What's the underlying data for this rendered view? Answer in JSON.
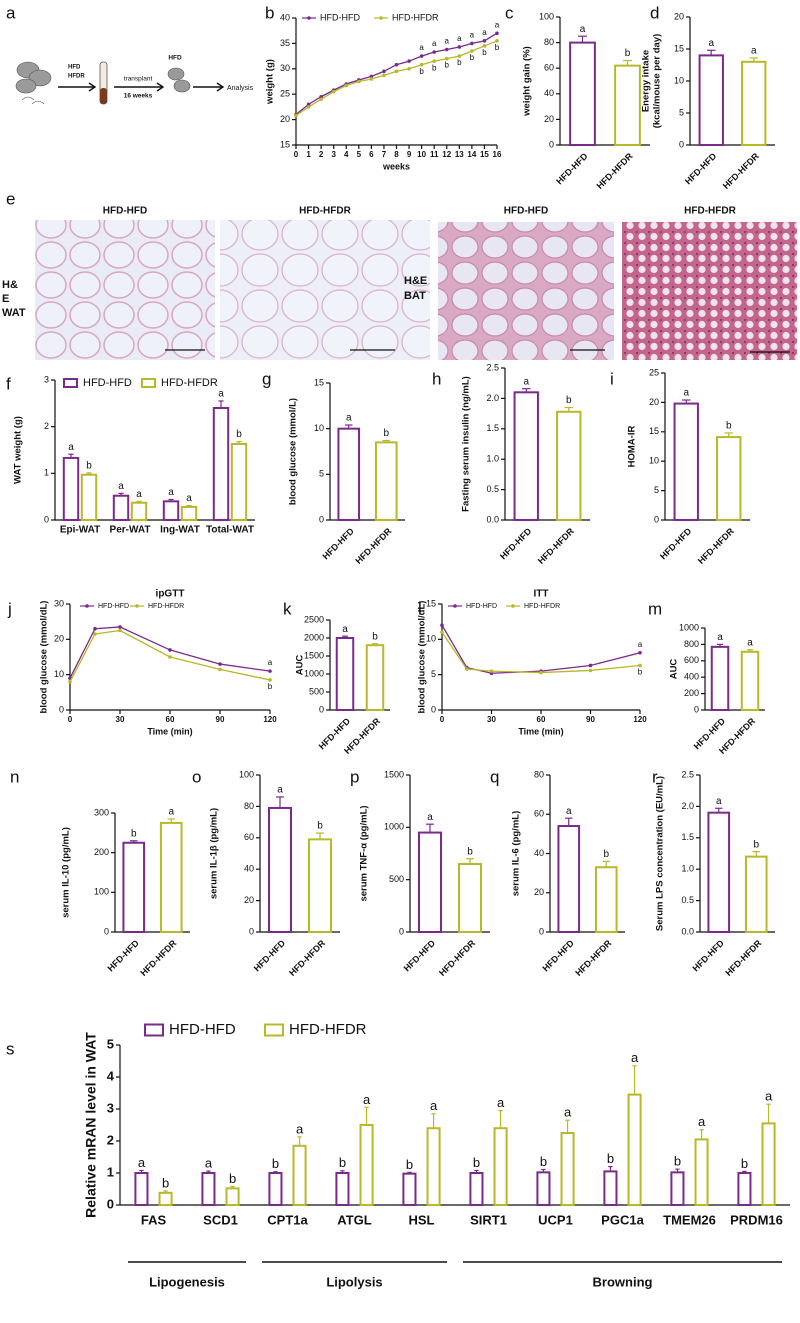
{
  "schematic": {
    "panel": "a",
    "labels": [
      "HFD",
      "HFDR",
      "transplant",
      "16 weeks",
      "HFD",
      "Analysis"
    ]
  },
  "histology": {
    "panel": "e",
    "images": [
      "HFD-HFD",
      "HFD-HFDR",
      "HFD-HFD",
      "HFD-HFDR"
    ],
    "row_labels": [
      [
        "H&",
        "E",
        "WAT"
      ],
      [
        "H&E",
        "BAT"
      ]
    ]
  },
  "chart_data": [
    {
      "panel": "b",
      "type": "line",
      "ylabel": "weight (g)",
      "xlabel": "weeks",
      "x": [
        0,
        1,
        2,
        3,
        4,
        5,
        6,
        7,
        8,
        9,
        10,
        11,
        12,
        13,
        14,
        15,
        16
      ],
      "xlim": [
        0,
        16
      ],
      "xticks": [
        0,
        1,
        2,
        3,
        4,
        5,
        6,
        7,
        8,
        9,
        10,
        11,
        12,
        13,
        14,
        15,
        16
      ],
      "ylim": [
        15,
        40
      ],
      "yticks": [
        15,
        20,
        25,
        30,
        35,
        40
      ],
      "series": [
        {
          "name": "HFD-HFD",
          "color": "#7b2a8c",
          "values": [
            21,
            23,
            24.5,
            25.8,
            27,
            27.8,
            28.5,
            29.5,
            30.8,
            31.5,
            32.5,
            33.3,
            33.8,
            34.3,
            35,
            35.5,
            37
          ],
          "letters": [
            null,
            null,
            null,
            null,
            null,
            null,
            null,
            null,
            null,
            null,
            "a",
            "a",
            "a",
            "a",
            "a",
            "a",
            "a"
          ]
        },
        {
          "name": "HFD-HFDR",
          "color": "#b8b828",
          "values": [
            20.8,
            22.5,
            24,
            25.5,
            26.7,
            27.5,
            28,
            28.7,
            29.5,
            30,
            30.8,
            31.5,
            32,
            32.5,
            33.5,
            34.5,
            35.5
          ],
          "letters": [
            null,
            null,
            null,
            null,
            null,
            null,
            null,
            null,
            null,
            null,
            "b",
            "b",
            "b",
            "b",
            "b",
            "b",
            "b"
          ]
        }
      ]
    },
    {
      "panel": "c",
      "type": "bar",
      "ylabel": "weight gain (%)",
      "categories": [
        "HFD-HFD",
        "HFD-HFDR"
      ],
      "colors": [
        "#7b2a8c",
        "#b8b828"
      ],
      "values": [
        80,
        62
      ],
      "errors": [
        5,
        4
      ],
      "letters": [
        "a",
        "b"
      ],
      "ylim": [
        0,
        100
      ],
      "yticks": [
        0,
        20,
        40,
        60,
        80,
        100
      ]
    },
    {
      "panel": "d",
      "type": "bar",
      "ylabel": [
        "Energy intake",
        "(kcal/mouse per day)"
      ],
      "categories": [
        "HFD-HFD",
        "HFD-HFDR"
      ],
      "colors": [
        "#7b2a8c",
        "#b8b828"
      ],
      "values": [
        14,
        13
      ],
      "errors": [
        0.8,
        0.6
      ],
      "letters": [
        "a",
        "a"
      ],
      "ylim": [
        0,
        20
      ],
      "yticks": [
        0,
        5,
        10,
        15,
        20
      ]
    },
    {
      "panel": "f",
      "type": "bar",
      "ylabel": "WAT weight (g)",
      "categories": [
        "Epi-WAT",
        "Per-WAT",
        "Ing-WAT",
        "Total-WAT"
      ],
      "ylim": [
        0,
        3
      ],
      "yticks": [
        0,
        1,
        2,
        3
      ],
      "series": [
        {
          "name": "HFD-HFD",
          "color": "#7b2a8c",
          "values": [
            1.33,
            0.52,
            0.4,
            2.4
          ],
          "errors": [
            0.08,
            0.05,
            0.04,
            0.15
          ],
          "letters": [
            "a",
            "a",
            "a",
            "a"
          ]
        },
        {
          "name": "HFD-HFDR",
          "color": "#b8b828",
          "values": [
            0.97,
            0.37,
            0.28,
            1.63
          ],
          "errors": [
            0.04,
            0.03,
            0.03,
            0.05
          ],
          "letters": [
            "b",
            "a",
            "a",
            "b"
          ]
        }
      ]
    },
    {
      "panel": "g",
      "type": "bar",
      "ylabel": "blood glucose (mmol/L)",
      "categories": [
        "HFD-HFD",
        "HFD-HFDR"
      ],
      "colors": [
        "#7b2a8c",
        "#b8b828"
      ],
      "values": [
        10,
        8.5
      ],
      "errors": [
        0.4,
        0.2
      ],
      "letters": [
        "a",
        "b"
      ],
      "ylim": [
        0,
        15
      ],
      "yticks": [
        0,
        5,
        10,
        15
      ]
    },
    {
      "panel": "h",
      "type": "bar",
      "ylabel": "Fasting serum insulin (ng/mL)",
      "categories": [
        "HFD-HFD",
        "HFD-HFDR"
      ],
      "colors": [
        "#7b2a8c",
        "#b8b828"
      ],
      "values": [
        2.1,
        1.78
      ],
      "errors": [
        0.06,
        0.07
      ],
      "letters": [
        "a",
        "b"
      ],
      "ylim": [
        0,
        2.5
      ],
      "yticks": [
        {
          "value": 0,
          "label": "0.0"
        },
        0.5,
        {
          "value": 1,
          "label": "1.0"
        },
        1.5,
        {
          "value": 2,
          "label": "2.0"
        },
        2.5
      ]
    },
    {
      "panel": "i",
      "type": "bar",
      "ylabel": "HOMA-IR",
      "categories": [
        "HFD-HFD",
        "HFD-HFDR"
      ],
      "colors": [
        "#7b2a8c",
        "#b8b828"
      ],
      "values": [
        19.8,
        14.1
      ],
      "errors": [
        0.6,
        0.7
      ],
      "letters": [
        "a",
        "b"
      ],
      "ylim": [
        0,
        25
      ],
      "yticks": [
        0,
        5,
        10,
        15,
        20,
        25
      ]
    },
    {
      "panel": "j",
      "type": "line",
      "title": "ipGTT",
      "ylabel": "blood glucose (mmol/dL)",
      "xlabel": "Time (min)",
      "x": [
        0,
        15,
        30,
        60,
        90,
        120
      ],
      "xlim": [
        0,
        120
      ],
      "xticks": [
        0,
        30,
        60,
        90,
        120
      ],
      "ylim": [
        0,
        30
      ],
      "yticks": [
        0,
        10,
        20,
        30
      ],
      "series": [
        {
          "name": "HFD-HFD",
          "color": "#7b2a8c",
          "values": [
            9,
            23,
            23.5,
            17,
            13,
            11
          ],
          "letters": [
            null,
            null,
            null,
            null,
            null,
            "a"
          ]
        },
        {
          "name": "HFD-HFDR",
          "color": "#b8b828",
          "values": [
            8,
            21.5,
            22.5,
            15,
            11.5,
            8.5
          ],
          "letters": [
            null,
            null,
            null,
            null,
            null,
            "b"
          ]
        }
      ]
    },
    {
      "panel": "k",
      "type": "bar",
      "ylabel": "AUC",
      "categories": [
        "HFD-HFD",
        "HFD-HFDR"
      ],
      "colors": [
        "#7b2a8c",
        "#b8b828"
      ],
      "values": [
        2000,
        1800
      ],
      "errors": [
        50,
        40
      ],
      "letters": [
        "a",
        "b"
      ],
      "ylim": [
        0,
        2500
      ],
      "yticks": [
        0,
        500,
        1000,
        1500,
        2000,
        2500
      ]
    },
    {
      "panel": "l",
      "type": "line",
      "title": "ITT",
      "ylabel": "blood glucose (mmol/dL)",
      "xlabel": "Time (min)",
      "x": [
        0,
        15,
        30,
        60,
        90,
        120
      ],
      "xlim": [
        0,
        120
      ],
      "xticks": [
        0,
        30,
        60,
        90,
        120
      ],
      "ylim": [
        0,
        15
      ],
      "yticks": [
        0,
        5,
        10,
        15
      ],
      "series": [
        {
          "name": "HFD-HFD",
          "color": "#7b2a8c",
          "values": [
            12,
            6,
            5.2,
            5.5,
            6.3,
            8.1
          ],
          "letters": [
            null,
            null,
            null,
            null,
            null,
            "a"
          ]
        },
        {
          "name": "HFD-HFDR",
          "color": "#b8b828",
          "values": [
            11,
            5.8,
            5.5,
            5.3,
            5.6,
            6.3
          ],
          "letters": [
            null,
            null,
            null,
            null,
            null,
            "b"
          ]
        }
      ]
    },
    {
      "panel": "m",
      "type": "bar",
      "ylabel": "AUC",
      "categories": [
        "HFD-HFD",
        "HFD-HFDR"
      ],
      "colors": [
        "#7b2a8c",
        "#b8b828"
      ],
      "values": [
        770,
        710
      ],
      "errors": [
        30,
        25
      ],
      "letters": [
        "a",
        "a"
      ],
      "ylim": [
        0,
        1000
      ],
      "yticks": [
        0,
        200,
        400,
        600,
        800,
        1000
      ]
    },
    {
      "panel": "n",
      "type": "bar",
      "ylabel": "serum IL-10 (pg/mL)",
      "categories": [
        "HFD-HFD",
        "HFD-HFDR"
      ],
      "colors": [
        "#7b2a8c",
        "#b8b828"
      ],
      "values": [
        225,
        275
      ],
      "errors": [
        5,
        10
      ],
      "letters": [
        "b",
        "a"
      ],
      "ylim": [
        0,
        300
      ],
      "yticks": [
        0,
        100,
        200,
        300
      ]
    },
    {
      "panel": "o",
      "type": "bar",
      "ylabel": "serum IL-1β (pg/mL)",
      "categories": [
        "HFD-HFD",
        "HFD-HFDR"
      ],
      "colors": [
        "#7b2a8c",
        "#b8b828"
      ],
      "values": [
        79,
        59
      ],
      "errors": [
        7,
        4
      ],
      "letters": [
        "a",
        "b"
      ],
      "ylim": [
        0,
        100
      ],
      "yticks": [
        0,
        20,
        40,
        60,
        80,
        100
      ]
    },
    {
      "panel": "p",
      "type": "bar",
      "ylabel": "serum TNF-α (pg/mL)",
      "categories": [
        "HFD-HFD",
        "HFD-HFDR"
      ],
      "colors": [
        "#7b2a8c",
        "#b8b828"
      ],
      "values": [
        950,
        650
      ],
      "errors": [
        80,
        50
      ],
      "letters": [
        "a",
        "b"
      ],
      "ylim": [
        0,
        1500
      ],
      "yticks": [
        0,
        500,
        1000,
        1500
      ]
    },
    {
      "panel": "q",
      "type": "bar",
      "ylabel": "serum IL-6 (pg/mL)",
      "categories": [
        "HFD-HFD",
        "HFD-HFDR"
      ],
      "colors": [
        "#7b2a8c",
        "#b8b828"
      ],
      "values": [
        54,
        33
      ],
      "errors": [
        4,
        3
      ],
      "letters": [
        "a",
        "b"
      ],
      "ylim": [
        0,
        80
      ],
      "yticks": [
        0,
        20,
        40,
        60,
        80
      ]
    },
    {
      "panel": "r",
      "type": "bar",
      "ylabel": "Serum LPS concentration (EU/mL)",
      "categories": [
        "HFD-HFD",
        "HFD-HFDR"
      ],
      "colors": [
        "#7b2a8c",
        "#b8b828"
      ],
      "values": [
        1.9,
        1.2
      ],
      "errors": [
        0.07,
        0.08
      ],
      "letters": [
        "a",
        "b"
      ],
      "ylim": [
        0,
        2.5
      ],
      "yticks": [
        {
          "value": 0,
          "label": "0.0"
        },
        0.5,
        {
          "value": 1,
          "label": "1.0"
        },
        1.5,
        {
          "value": 2,
          "label": "2.0"
        },
        2.5
      ]
    },
    {
      "panel": "s",
      "type": "bar",
      "ylabel": "Relative mRAN level in WAT",
      "categories": [
        "FAS",
        "SCD1",
        "CPT1a",
        "ATGL",
        "HSL",
        "SIRT1",
        "UCP1",
        "PGC1a",
        "TMEM26",
        "PRDM16"
      ],
      "ylim": [
        0,
        5
      ],
      "yticks": [
        0,
        1,
        2,
        3,
        4,
        5
      ],
      "groups": [
        {
          "label": "Lipogenesis",
          "from": 0,
          "to": 1
        },
        {
          "label": "Lipolysis",
          "from": 2,
          "to": 4
        },
        {
          "label": "Browning",
          "from": 5,
          "to": 9
        }
      ],
      "series": [
        {
          "name": "HFD-HFD",
          "color": "#7b2a8c",
          "values": [
            1,
            1,
            1,
            1,
            0.98,
            1,
            1.02,
            1.05,
            1.02,
            1
          ],
          "errors": [
            0.08,
            0.06,
            0.04,
            0.07,
            0.04,
            0.08,
            0.09,
            0.15,
            0.1,
            0.05
          ],
          "letters": [
            "a",
            "a",
            "b",
            "b",
            "b",
            "b",
            "b",
            "b",
            "b",
            "b"
          ]
        },
        {
          "name": "HFD-HFDR",
          "color": "#b8b828",
          "values": [
            0.38,
            0.52,
            1.85,
            2.5,
            2.4,
            2.4,
            2.25,
            3.45,
            2.05,
            2.55
          ],
          "errors": [
            0.06,
            0.06,
            0.28,
            0.55,
            0.45,
            0.55,
            0.4,
            0.9,
            0.3,
            0.6
          ],
          "letters": [
            "b",
            "b",
            "a",
            "a",
            "a",
            "a",
            "a",
            "a",
            "a",
            "a"
          ]
        }
      ]
    }
  ]
}
